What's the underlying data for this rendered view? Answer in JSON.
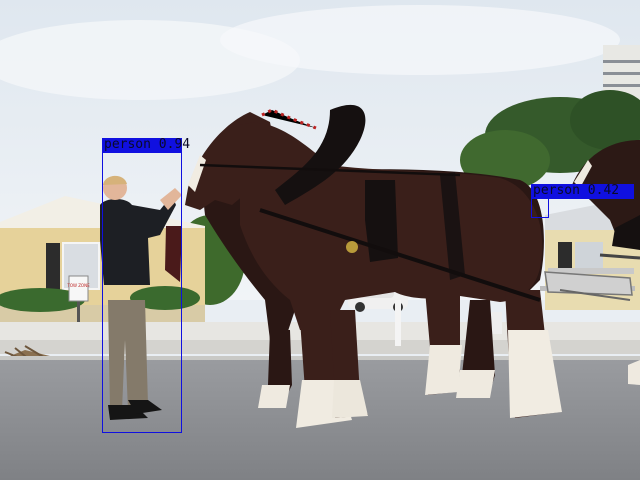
{
  "detections": [
    {
      "label": "person",
      "score": "0.94"
    },
    {
      "label": "person",
      "score": "0.42"
    }
  ],
  "sign_text": "TOW ZONE",
  "colors": {
    "box": "#1010e0",
    "sky": "#e9eef3",
    "horse": "#3a1f1a",
    "road": "#8d8f93"
  }
}
